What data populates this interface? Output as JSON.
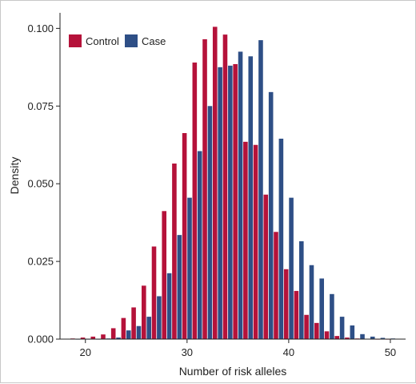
{
  "chart_data": {
    "type": "bar",
    "xlabel": "Number of risk alleles",
    "ylabel": "Density",
    "xlim": [
      17.5,
      51.5
    ],
    "ylim": [
      0,
      0.105
    ],
    "xticks": [
      20,
      30,
      40,
      50
    ],
    "yticks": [
      0.0,
      0.025,
      0.05,
      0.075,
      0.1
    ],
    "ytick_labels": [
      "0.000",
      "0.025",
      "0.050",
      "0.075",
      "0.100"
    ],
    "legend_position": "top-left",
    "grid": false,
    "x": [
      19,
      20,
      21,
      22,
      23,
      24,
      25,
      26,
      27,
      28,
      29,
      30,
      31,
      32,
      33,
      34,
      35,
      36,
      37,
      38,
      39,
      40,
      41,
      42,
      43,
      44,
      45,
      46,
      47,
      48,
      49,
      50
    ],
    "series": [
      {
        "name": "Control",
        "color": "#b5123a",
        "values": [
          0.0002,
          0.0005,
          0.0008,
          0.0015,
          0.0035,
          0.0068,
          0.0102,
          0.0172,
          0.0298,
          0.0412,
          0.0565,
          0.0663,
          0.089,
          0.0965,
          0.1005,
          0.098,
          0.0885,
          0.0635,
          0.0625,
          0.0465,
          0.0345,
          0.0225,
          0.0155,
          0.0078,
          0.0052,
          0.0025,
          0.001,
          0.0005,
          0.0002,
          0.0001,
          0.0,
          0.0
        ]
      },
      {
        "name": "Case",
        "color": "#2e4f86",
        "values": [
          0.0,
          0.0,
          0.0,
          0.0002,
          0.0005,
          0.0028,
          0.0042,
          0.0072,
          0.0138,
          0.0212,
          0.0335,
          0.0455,
          0.0605,
          0.075,
          0.0875,
          0.088,
          0.0925,
          0.091,
          0.0962,
          0.0795,
          0.0645,
          0.0455,
          0.0315,
          0.0238,
          0.0195,
          0.0145,
          0.0072,
          0.0044,
          0.0016,
          0.0008,
          0.0004,
          0.0002
        ]
      }
    ]
  }
}
